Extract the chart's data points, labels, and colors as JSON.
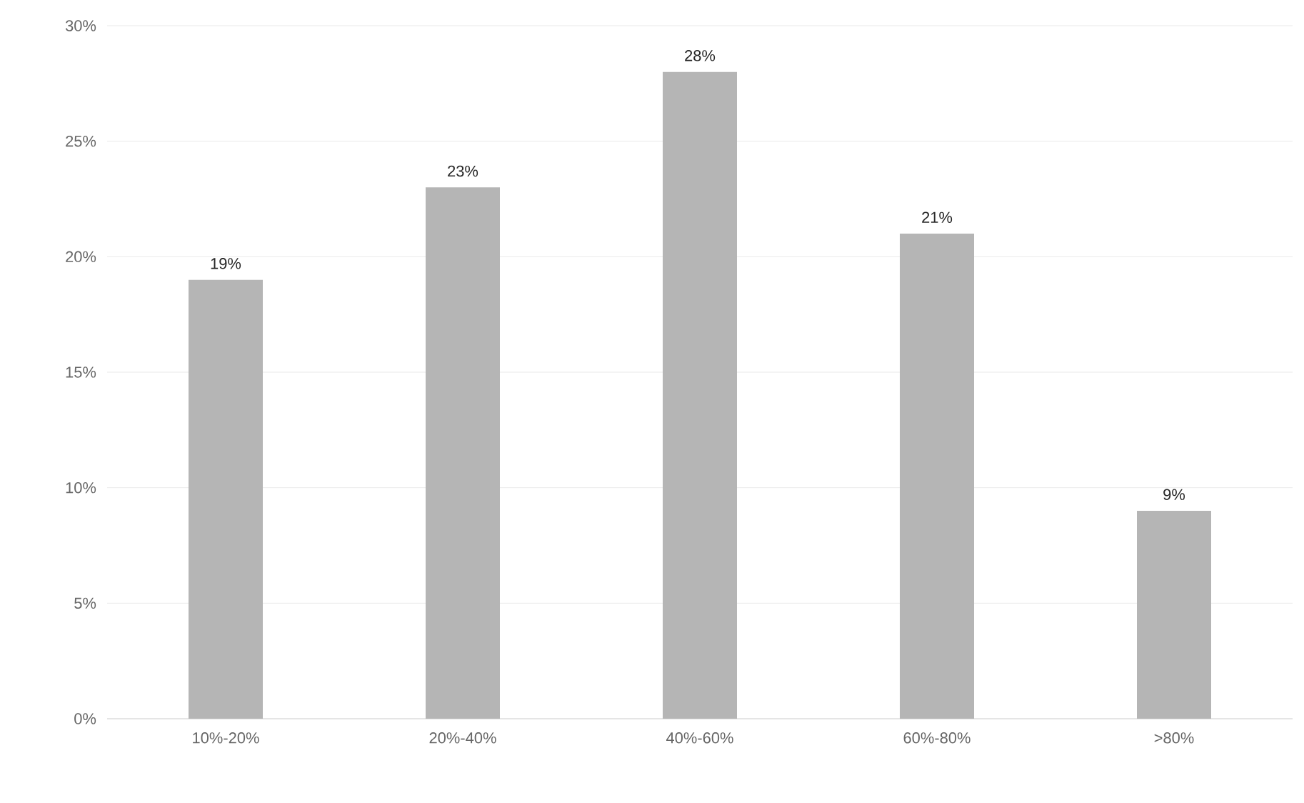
{
  "chart_data": {
    "type": "bar",
    "categories": [
      "10%-20%",
      "20%-40%",
      "40%-60%",
      "60%-80%",
      ">80%"
    ],
    "values": [
      19,
      23,
      28,
      21,
      9
    ],
    "value_labels": [
      "19%",
      "23%",
      "28%",
      "21%",
      "9%"
    ],
    "color": "#b5b5b5",
    "ylim": [
      0,
      30
    ],
    "yticks": [
      {
        "value": 0,
        "label": "0%"
      },
      {
        "value": 5,
        "label": "5%"
      },
      {
        "value": 10,
        "label": "10%"
      },
      {
        "value": 15,
        "label": "15%"
      },
      {
        "value": 20,
        "label": "20%"
      },
      {
        "value": 25,
        "label": "25%"
      },
      {
        "value": 30,
        "label": "30%"
      }
    ],
    "grid": "y"
  }
}
